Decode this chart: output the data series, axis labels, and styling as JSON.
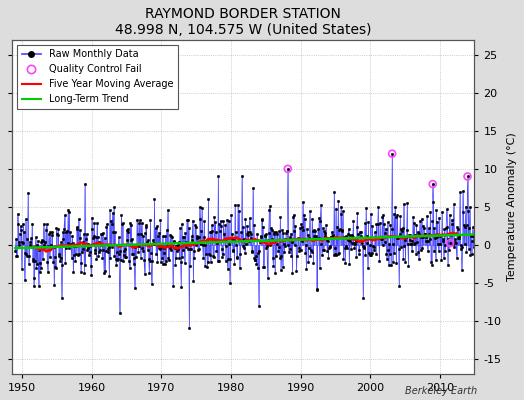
{
  "title": "RAYMOND BORDER STATION",
  "subtitle": "48.998 N, 104.575 W (United States)",
  "ylabel": "Temperature Anomaly (°C)",
  "xlabel_note": "Berkeley Earth",
  "xlim": [
    1948.5,
    2015
  ],
  "ylim": [
    -17,
    27
  ],
  "yticks": [
    -15,
    -10,
    -5,
    0,
    5,
    10,
    15,
    20,
    25
  ],
  "xticks": [
    1950,
    1960,
    1970,
    1980,
    1990,
    2000,
    2010
  ],
  "bg_color": "#dddddd",
  "plot_bg_color": "#ffffff",
  "raw_line_color": "#4444ff",
  "raw_dot_color": "#000000",
  "qc_color": "#ff44ff",
  "moving_avg_color": "#ff0000",
  "trend_color": "#00cc00",
  "seed": 12345,
  "start_year": 1949,
  "end_year": 2015
}
